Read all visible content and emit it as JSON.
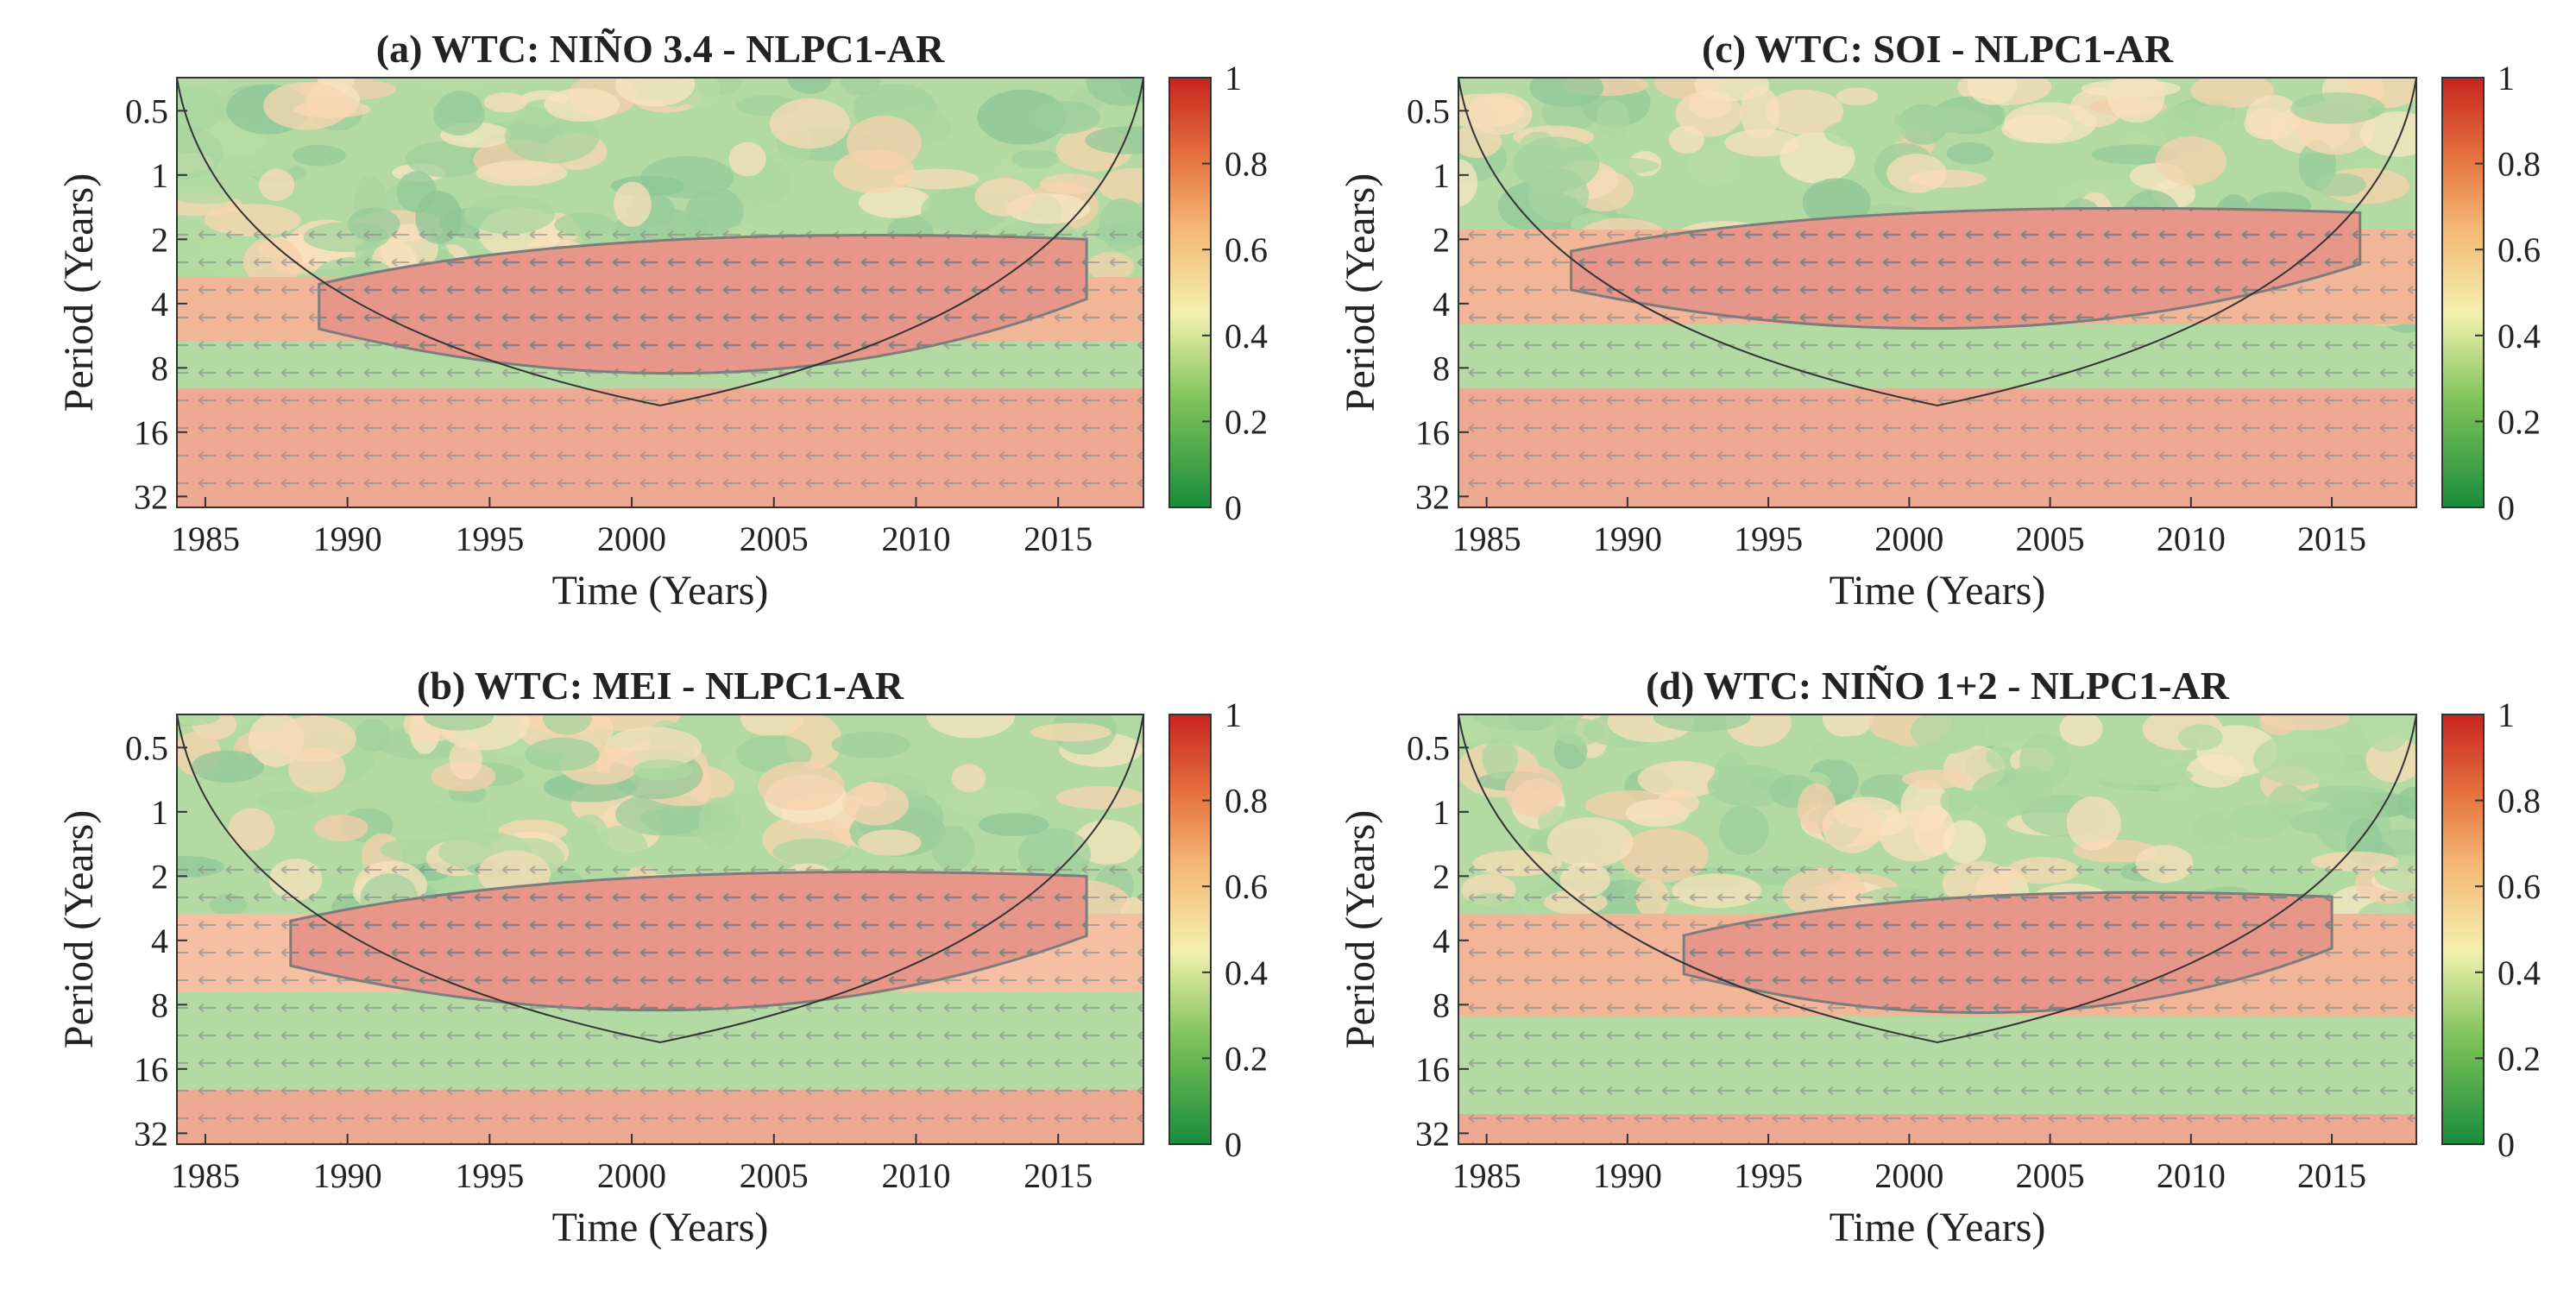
{
  "chart_data": [
    {
      "id": "a",
      "type": "heatmap",
      "title": "(a) WTC: NIÑO 3.4 - NLPC1-AR",
      "xlabel": "Time (Years)",
      "ylabel": "Period (Years)",
      "xlim": [
        1984,
        2018
      ],
      "ylim": [
        0.35,
        36
      ],
      "xticks": [
        1985,
        1990,
        1995,
        2000,
        2005,
        2010,
        2015
      ],
      "yticks": [
        0.5,
        1,
        2,
        4,
        8,
        16,
        32
      ],
      "colorbar": {
        "range": [
          0,
          1
        ],
        "ticks": [
          "0",
          "0.2",
          "0.4",
          "0.6",
          "0.8",
          "1"
        ]
      },
      "coi_peak_period": 12,
      "region_of_high_coherence": {
        "x_start": 1989,
        "x_end": 2016,
        "period_low": 2,
        "period_high": 10
      },
      "background_bands": [
        {
          "period_low": 3,
          "period_high": 6,
          "coherence": 0.8
        },
        {
          "period_low": 10,
          "period_high": 36,
          "coherence": 0.85
        }
      ]
    },
    {
      "id": "b",
      "type": "heatmap",
      "title": "(b) WTC: MEI - NLPC1-AR",
      "xlabel": "Time (Years)",
      "ylabel": "Period (Years)",
      "xlim": [
        1984,
        2018
      ],
      "ylim": [
        0.35,
        36
      ],
      "xticks": [
        1985,
        1990,
        1995,
        2000,
        2005,
        2010,
        2015
      ],
      "yticks": [
        0.5,
        1,
        2,
        4,
        8,
        16,
        32
      ],
      "colorbar": {
        "range": [
          0,
          1
        ],
        "ticks": [
          "0",
          "0.2",
          "0.4",
          "0.6",
          "0.8",
          "1"
        ]
      },
      "coi_peak_period": 12,
      "region_of_high_coherence": {
        "x_start": 1988,
        "x_end": 2016,
        "period_low": 2,
        "period_high": 10
      },
      "background_bands": [
        {
          "period_low": 3,
          "period_high": 7,
          "coherence": 0.75
        },
        {
          "period_low": 20,
          "period_high": 36,
          "coherence": 0.85
        }
      ]
    },
    {
      "id": "c",
      "type": "heatmap",
      "title": "(c) WTC: SOI - NLPC1-AR",
      "xlabel": "Time (Years)",
      "ylabel": "Period (Years)",
      "xlim": [
        1984,
        2018
      ],
      "ylim": [
        0.35,
        36
      ],
      "xticks": [
        1985,
        1990,
        1995,
        2000,
        2005,
        2010,
        2015
      ],
      "yticks": [
        0.5,
        1,
        2,
        4,
        8,
        16,
        32
      ],
      "colorbar": {
        "range": [
          0,
          1
        ],
        "ticks": [
          "0",
          "0.2",
          "0.4",
          "0.6",
          "0.8",
          "1"
        ]
      },
      "coi_peak_period": 12,
      "region_of_high_coherence": {
        "x_start": 1988,
        "x_end": 2016,
        "period_low": 1.5,
        "period_high": 6
      },
      "background_bands": [
        {
          "period_low": 1.8,
          "period_high": 5,
          "coherence": 0.8
        },
        {
          "period_low": 10,
          "period_high": 36,
          "coherence": 0.85
        }
      ]
    },
    {
      "id": "d",
      "type": "heatmap",
      "title": "(d) WTC: NIÑO 1+2 - NLPC1-AR",
      "xlabel": "Time (Years)",
      "ylabel": "Period (Years)",
      "xlim": [
        1984,
        2018
      ],
      "ylim": [
        0.35,
        36
      ],
      "xticks": [
        1985,
        1990,
        1995,
        2000,
        2005,
        2010,
        2015
      ],
      "yticks": [
        0.5,
        1,
        2,
        4,
        8,
        16,
        32
      ],
      "colorbar": {
        "range": [
          0,
          1
        ],
        "ticks": [
          "0",
          "0.2",
          "0.4",
          "0.6",
          "0.8",
          "1"
        ]
      },
      "coi_peak_period": 12,
      "region_of_high_coherence": {
        "x_start": 1992,
        "x_end": 2015,
        "period_low": 2.5,
        "period_high": 10
      },
      "background_bands": [
        {
          "period_low": 3,
          "period_high": 9,
          "coherence": 0.8
        },
        {
          "period_low": 26,
          "period_high": 36,
          "coherence": 0.85
        }
      ]
    }
  ]
}
